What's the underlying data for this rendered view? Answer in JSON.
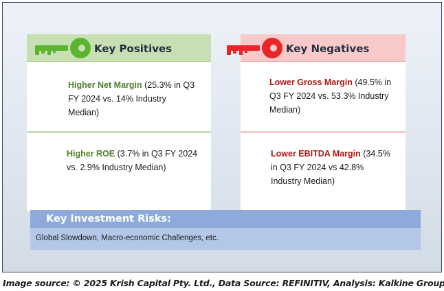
{
  "positives": {
    "title": "Key Positives",
    "icon": "key-icon",
    "accent": "#5cb531",
    "items": [
      {
        "lead": "Higher Net Margin",
        "text": " (25.3% in Q3 FY 2024 vs. 14% Industry Median)"
      },
      {
        "lead": "Higher ROE",
        "text": " (3.7% in Q3 FY 2024 vs. 2.9% Industry Median)"
      }
    ]
  },
  "negatives": {
    "title": "Key Negatives",
    "icon": "key-icon",
    "accent": "#e8262a",
    "items": [
      {
        "lead": "Lower Gross Margin",
        "text": " (49.5% in Q3 FY 2024 vs. 53.3% Industry Median)"
      },
      {
        "lead": "Lower EBITDA Margin",
        "text": " (34.5% in Q3 FY 2024 vs 42.8% Industry Median)"
      }
    ]
  },
  "risks": {
    "title": "Key Investment Risks:",
    "text": "Global Slowdown, Macro-economic Challenges, etc."
  },
  "source": "Image source: © 2025 Krish Capital Pty. Ltd., Data Source: REFINITIV, Analysis: Kalkine Group"
}
